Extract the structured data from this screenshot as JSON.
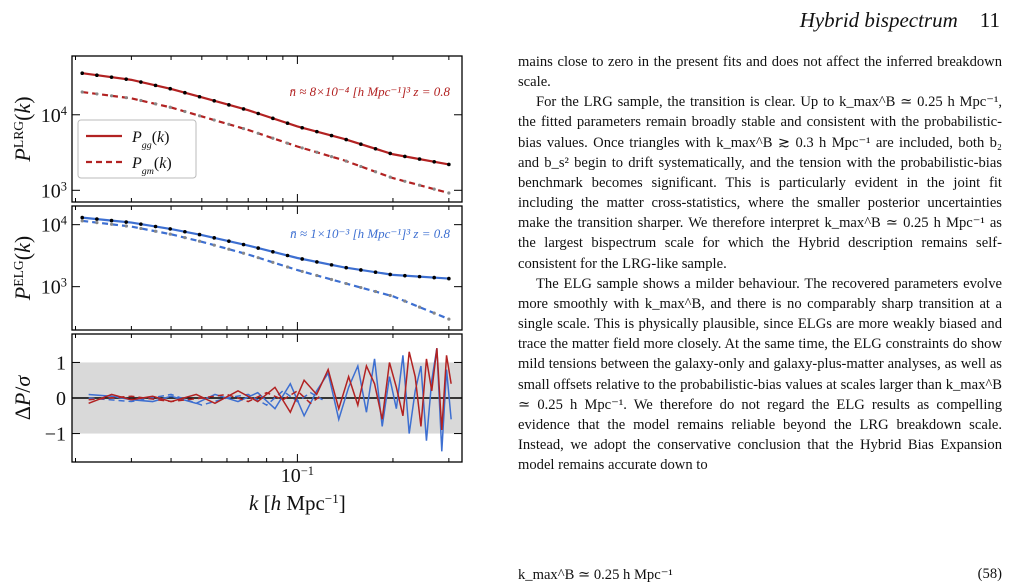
{
  "header": {
    "title": "Hybrid bispectrum",
    "page_number": "11"
  },
  "paragraphs": [
    "mains close to zero in the present fits and does not affect the inferred breakdown scale.",
    "For the LRG sample, the transition is clear. Up to k_max^B ≃ 0.25 h Mpc⁻¹, the fitted parameters remain broadly stable and consistent with the probabilistic-bias values. Once triangles with k_max^B ≳ 0.3 h Mpc⁻¹ are included, both b₂ and b_s² begin to drift systematically, and the tension with the probabilistic-bias benchmark becomes significant. This is particularly evident in the joint fit including the matter cross-statistics, where the smaller posterior uncertainties make the transition sharper. We therefore interpret k_max^B ≃ 0.25 h Mpc⁻¹ as the largest bispectrum scale for which the Hybrid description remains self-consistent for the LRG-like sample.",
    "The ELG sample shows a milder behaviour. The recovered parameters evolve more smoothly with k_max^B, and there is no comparably sharp transition at a single scale. This is physically plausible, since ELGs are more weakly biased and trace the matter field more closely. At the same time, the ELG constraints do show mild tensions between the galaxy-only and galaxy-plus-matter analyses, as well as small offsets relative to the probabilistic-bias values at scales larger than k_max^B ≃ 0.25 h Mpc⁻¹. We therefore do not regard the ELG results as compelling evidence that the model remains reliable beyond the LRG breakdown scale. Instead, we adopt the conservative conclusion that the Hybrid Bias Expansion model remains accurate down to"
  ],
  "equation": {
    "text": "k_max^B ≃ 0.25 h Mpc⁻¹",
    "number": "(58)"
  },
  "colors": {
    "lrg": "#b22222",
    "elg": "#3d6fd1",
    "band": "#d9d9d9",
    "data_points": "#000000"
  },
  "chart_data": [
    {
      "type": "line",
      "panel": "top",
      "ylabel": "P^LRG(k)",
      "yscale": "log",
      "ylim": [
        700,
        60000
      ],
      "xlim": [
        0.0195,
        0.33
      ],
      "annotation": "n̄ ≈ 8×10⁻⁴ [h Mpc⁻¹]³   z = 0.8",
      "yticks": [
        "10^3",
        "10^4"
      ],
      "legend": {
        "placement": "lower-left",
        "entries": [
          "P_gg(k)",
          "P_gm(k)"
        ]
      },
      "series": [
        {
          "name": "P_gg(k)",
          "style": "solid",
          "x": [
            0.021,
            0.03,
            0.04,
            0.05,
            0.07,
            0.1,
            0.14,
            0.2,
            0.3
          ],
          "y": [
            35500,
            29000,
            22000,
            17000,
            11500,
            7000,
            4800,
            3000,
            2200
          ]
        },
        {
          "name": "P_gm(k)",
          "style": "dashed",
          "x": [
            0.021,
            0.03,
            0.04,
            0.05,
            0.07,
            0.1,
            0.14,
            0.2,
            0.3
          ],
          "y": [
            20000,
            16500,
            12500,
            9500,
            6300,
            3800,
            2500,
            1450,
            920
          ]
        }
      ]
    },
    {
      "type": "line",
      "panel": "middle",
      "ylabel": "P^ELG(k)",
      "yscale": "log",
      "ylim": [
        200,
        20000
      ],
      "xlim": [
        0.0195,
        0.33
      ],
      "annotation": "n̄ ≈ 1×10⁻³ [h Mpc⁻¹]³   z = 0.8",
      "yticks": [
        "10^3",
        "10^4"
      ],
      "series": [
        {
          "style": "solid",
          "x": [
            0.021,
            0.03,
            0.04,
            0.05,
            0.07,
            0.1,
            0.14,
            0.2,
            0.3
          ],
          "y": [
            13000,
            10800,
            8500,
            6800,
            4600,
            2900,
            2050,
            1550,
            1350
          ]
        },
        {
          "style": "dashed",
          "x": [
            0.021,
            0.03,
            0.04,
            0.05,
            0.07,
            0.1,
            0.14,
            0.2,
            0.3
          ],
          "y": [
            11500,
            9300,
            7000,
            5300,
            3300,
            1850,
            1150,
            700,
            300
          ]
        }
      ]
    },
    {
      "type": "line",
      "panel": "bottom",
      "ylabel": "ΔP/σ",
      "xlabel": "k [h Mpc⁻¹]",
      "ylim": [
        -1.8,
        1.8
      ],
      "xlim": [
        0.0195,
        0.33
      ],
      "yticks": [
        "-1",
        "0",
        "1"
      ],
      "xticks": [
        "10^-1"
      ],
      "band": [
        -1,
        1
      ],
      "series": [
        {
          "name": "ELG solid",
          "color": "elg",
          "style": "solid",
          "x": [
            0.022,
            0.026,
            0.03,
            0.035,
            0.04,
            0.048,
            0.055,
            0.065,
            0.075,
            0.085,
            0.095,
            0.105,
            0.115,
            0.125,
            0.135,
            0.145,
            0.155,
            0.165,
            0.175,
            0.185,
            0.195,
            0.205,
            0.215,
            0.225,
            0.235,
            0.245,
            0.255,
            0.265,
            0.275,
            0.285,
            0.295,
            0.305
          ],
          "y": [
            0.1,
            0.05,
            -0.05,
            -0.1,
            0.05,
            -0.15,
            0.1,
            -0.1,
            0.15,
            -0.3,
            0.4,
            -0.5,
            0.2,
            0.7,
            -0.6,
            0.3,
            0.9,
            -0.4,
            1.1,
            -0.8,
            0.6,
            -0.3,
            1.2,
            -1.0,
            0.2,
            0.9,
            -1.2,
            0.5,
            1.4,
            -1.5,
            0.8,
            -0.6
          ]
        },
        {
          "name": "ELG dashed",
          "color": "elg",
          "style": "dashed",
          "x": [
            0.022,
            0.03,
            0.04,
            0.05,
            0.06,
            0.07,
            0.08,
            0.09,
            0.1,
            0.11,
            0.12
          ],
          "y": [
            0.0,
            -0.1,
            0.1,
            -0.2,
            0.0,
            0.1,
            -0.2,
            0.2,
            -0.1,
            0.15,
            -0.05
          ]
        },
        {
          "name": "LRG solid",
          "color": "lrg",
          "style": "solid",
          "x": [
            0.022,
            0.026,
            0.03,
            0.035,
            0.04,
            0.048,
            0.055,
            0.065,
            0.075,
            0.085,
            0.095,
            0.105,
            0.115,
            0.125,
            0.135,
            0.145,
            0.155,
            0.165,
            0.175,
            0.185,
            0.195,
            0.205,
            0.215,
            0.225,
            0.235,
            0.245,
            0.255,
            0.265,
            0.275,
            0.285,
            0.295,
            0.305
          ],
          "y": [
            -0.15,
            0.1,
            -0.05,
            0.05,
            -0.1,
            0.1,
            -0.15,
            0.2,
            -0.1,
            0.3,
            -0.4,
            0.5,
            0.1,
            0.8,
            -0.3,
            0.6,
            -0.2,
            0.9,
            0.4,
            -0.6,
            1.0,
            0.3,
            -0.5,
            1.3,
            0.6,
            -0.8,
            1.1,
            0.2,
            1.4,
            -0.9,
            1.2,
            0.4
          ]
        },
        {
          "name": "LRG dashed",
          "color": "lrg",
          "style": "dashed",
          "x": [
            0.022,
            0.03,
            0.04,
            0.05,
            0.06,
            0.07,
            0.08,
            0.09,
            0.1,
            0.11,
            0.12
          ],
          "y": [
            -0.05,
            0.05,
            -0.1,
            0.0,
            0.1,
            -0.1,
            0.15,
            -0.05,
            0.2,
            -0.15,
            0.1
          ]
        }
      ]
    }
  ]
}
